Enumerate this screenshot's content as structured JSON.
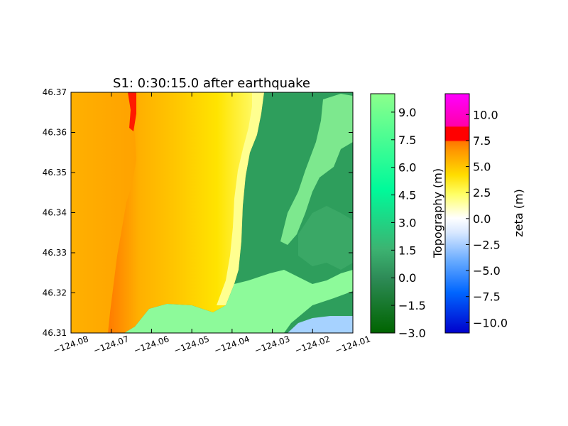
{
  "chart_data": {
    "type": "heatmap",
    "title": "S1: 0:30:15.0 after earthquake",
    "xlim": [
      -124.08,
      -124.01
    ],
    "ylim": [
      46.31,
      46.37
    ],
    "xticks": [
      "−124.08",
      "−124.07",
      "−124.06",
      "−124.05",
      "−124.04",
      "−124.03",
      "−124.02",
      "−124.01"
    ],
    "yticks": [
      "46.37",
      "46.36",
      "46.35",
      "46.34",
      "46.33",
      "46.32",
      "46.31"
    ],
    "grid": false,
    "colorbars": [
      {
        "name": "topography",
        "label": "Topography (m)",
        "range": [
          -3,
          10
        ],
        "ticks": [
          "9.0",
          "7.5",
          "6.0",
          "4.5",
          "3.0",
          "1.5",
          "0.0",
          "−1.5",
          "−3.0"
        ],
        "tick_values": [
          9,
          7.5,
          6,
          4.5,
          3,
          1.5,
          0,
          -1.5,
          -3
        ],
        "colors": [
          "#006400",
          "#3cb371",
          "#00fa9a",
          "#7fff7f",
          "#8cff8c"
        ]
      },
      {
        "name": "zeta",
        "label": "zeta (m)",
        "range": [
          -11,
          12
        ],
        "ticks": [
          "10.0",
          "7.5",
          "5.0",
          "2.5",
          "0.0",
          "−2.5",
          "−5.0",
          "−7.5",
          "−10.0"
        ],
        "tick_values": [
          10,
          7.5,
          5,
          2.5,
          0,
          -2.5,
          -5,
          -7.5,
          -10
        ],
        "colors": [
          "#0000cc",
          "#1e90ff",
          "#aaccff",
          "#ffffff",
          "#ffff00",
          "#ffa500",
          "#ff4500",
          "#ff0000",
          "#ff00ff"
        ]
      }
    ]
  },
  "colors": {
    "ocean_offshore": "#ffb000",
    "ocean_mid": "#ff7a00",
    "surf_zone": "#ffd000",
    "beach": "#ffff66",
    "land_low": "#2e9e5c",
    "land_mid": "#4cc47a",
    "land_high": "#8dfa9a",
    "water_inland": "#a6d2ff"
  }
}
